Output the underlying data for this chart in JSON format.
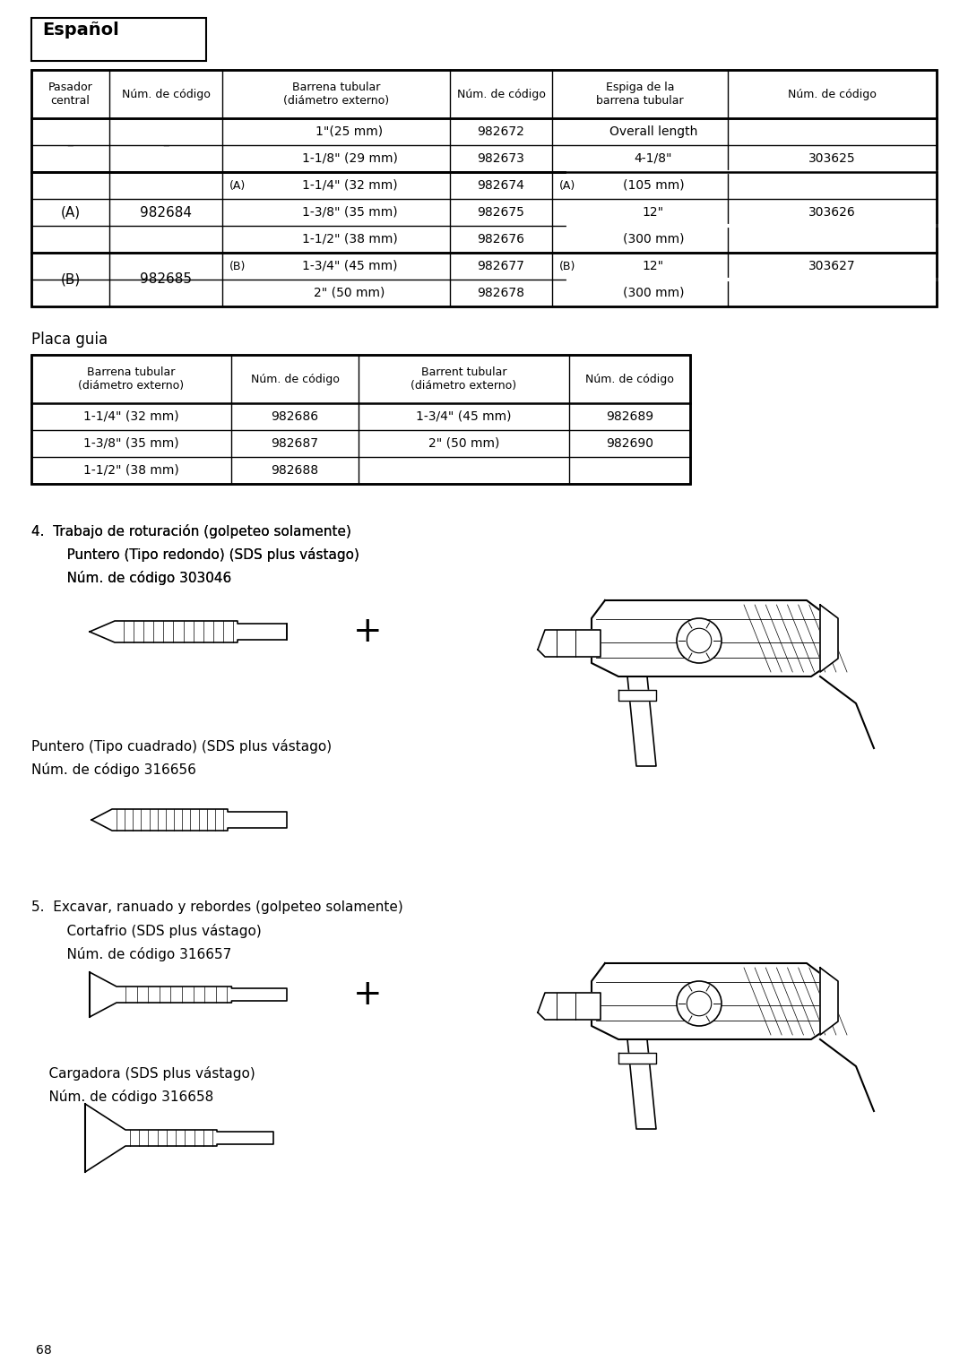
{
  "page_bg": "#ffffff",
  "header_text": "Español",
  "page_number": "68",
  "item4_title": "4.  Trabajo de roturación (golpeteo solamente)",
  "item4_line2": "    Puntero (Tipo redondo) (SDS plus vástago)",
  "item4_line3": "    Núm. de código 303046",
  "item4b_line1": "Puntero (Tipo cuadrado) (SDS plus vástago)",
  "item4b_line2": "Núm. de código 316656",
  "item5_title": "5.  Excavar, ranuado y rebordes (golpeteo solamente)",
  "item5_line2": "    Cortafrio (SDS plus vástago)",
  "item5_line3": "    Núm. de código 316657",
  "item5b_line1": "    Cargadora (SDS plus vástago)",
  "item5b_line2": "    Núm. de código 316658",
  "t1_hdr": [
    "Pasador\ncentral",
    "Núm. de código",
    "Barrena tubular\n(diámetro externo)",
    "Núm. de código",
    "Espiga de la\nbarrena tubular",
    "Núm. de código"
  ],
  "t2_hdr": [
    "Barrena tubular\n(diámetro externo)",
    "Núm. de código",
    "Barrent tubular\n(diámetro externo)",
    "Núm. de código"
  ],
  "table2_title": "Placa guia",
  "font_body": 10,
  "font_small": 8.5,
  "font_header": 13
}
